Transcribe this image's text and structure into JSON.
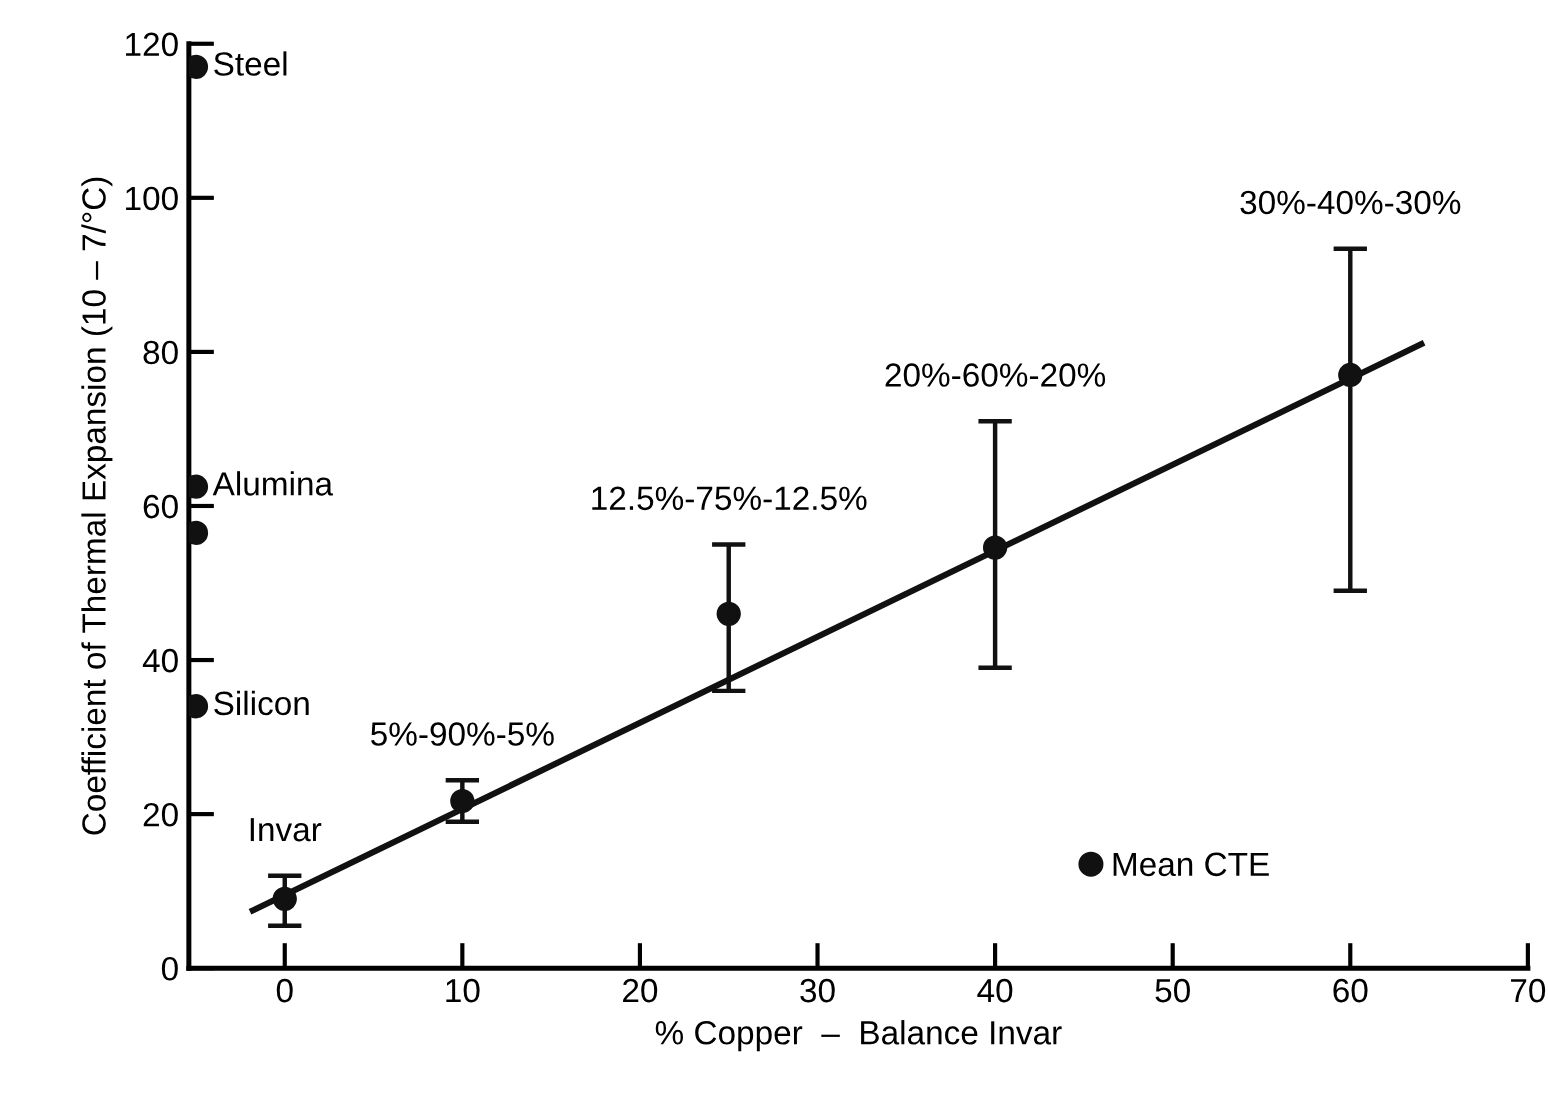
{
  "chart_data": {
    "type": "scatter",
    "xlabel": "% Copper  –  Balance Invar",
    "ylabel": "Coefficient of Thermal Expansion (10 – 7/°C)",
    "xlim": [
      -5.4,
      70
    ],
    "ylim": [
      0,
      120
    ],
    "xticks": [
      0,
      10,
      20,
      30,
      40,
      50,
      60,
      70
    ],
    "yticks": [
      0,
      20,
      40,
      60,
      80,
      100,
      120
    ],
    "grid": false,
    "legend": "bottom right",
    "marker": "circle",
    "series": [
      {
        "color": "#111111",
        "x": [
          -5,
          -5,
          -5,
          -5
        ],
        "values": [
          117,
          62.5,
          56.5,
          34
        ]
      },
      {
        "name": "Mean CTE",
        "color": "#111111",
        "x": [
          0,
          10,
          25,
          40,
          60
        ],
        "values": [
          9,
          21.7,
          46,
          54.6,
          77
        ],
        "errors": [
          [
            5.5,
            12
          ],
          [
            19,
            24.4
          ],
          [
            36,
            55
          ],
          [
            39,
            71
          ],
          [
            49,
            93.4
          ]
        ]
      },
      {
        "type": "line",
        "color": "#111111",
        "marker": "none",
        "line_style": "solid",
        "x": [
          -1.8,
          64
        ],
        "values": [
          7.5,
          81
        ]
      }
    ],
    "annotations": [
      {
        "text": "Steel",
        "x": -5,
        "y": 117
      },
      {
        "text": "Alumina",
        "x": -5,
        "y": 62.5
      },
      {
        "text": "Silicon",
        "x": -5,
        "y": 34
      },
      {
        "text": "Invar",
        "x": 0,
        "y": 12
      },
      {
        "text": "5%-90%-5%",
        "x": 10,
        "y": 24.4
      },
      {
        "text": "12.5%-75%-12.5%",
        "x": 25,
        "y": 55
      },
      {
        "text": "20%-60%-20%",
        "x": 40,
        "y": 71
      },
      {
        "text": "30%-40%-30%",
        "x": 60,
        "y": 93.4
      }
    ]
  }
}
